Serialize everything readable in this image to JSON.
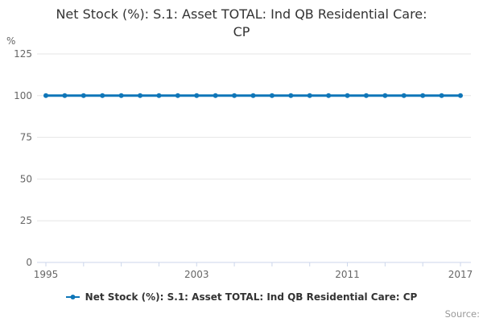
{
  "title": "Net Stock (%): S.1: Asset TOTAL: Ind QB Residential Care:\nCP",
  "y_axis_unit": "%",
  "source_label": "Source:",
  "colors": {
    "series": "#0f76b8",
    "grid": "#e6e6e6",
    "axis": "#ccd6eb",
    "axis_label": "#666666",
    "title": "#333333",
    "legend_text": "#333333",
    "source": "#999999"
  },
  "chart_data": {
    "type": "line",
    "title": "Net Stock (%): S.1: Asset TOTAL: Ind QB Residential Care: CP",
    "xlabel": "",
    "ylabel": "%",
    "x": [
      1995,
      1996,
      1997,
      1998,
      1999,
      2000,
      2001,
      2002,
      2003,
      2004,
      2005,
      2006,
      2007,
      2008,
      2009,
      2010,
      2011,
      2012,
      2013,
      2014,
      2015,
      2016,
      2017
    ],
    "series": [
      {
        "name": "Net Stock (%): S.1: Asset TOTAL: Ind QB Residential Care: CP",
        "values": [
          100,
          100,
          100,
          100,
          100,
          100,
          100,
          100,
          100,
          100,
          100,
          100,
          100,
          100,
          100,
          100,
          100,
          100,
          100,
          100,
          100,
          100,
          100
        ]
      }
    ],
    "ylim": [
      0,
      125
    ],
    "y_ticks": [
      0,
      25,
      50,
      75,
      100,
      125
    ],
    "x_ticks": [
      1995,
      1997,
      1999,
      2001,
      2003,
      2005,
      2007,
      2009,
      2011,
      2013,
      2015,
      2017
    ],
    "x_tick_labels": [
      1995,
      2003,
      2011,
      2017
    ],
    "grid": true,
    "legend_position": "bottom"
  }
}
